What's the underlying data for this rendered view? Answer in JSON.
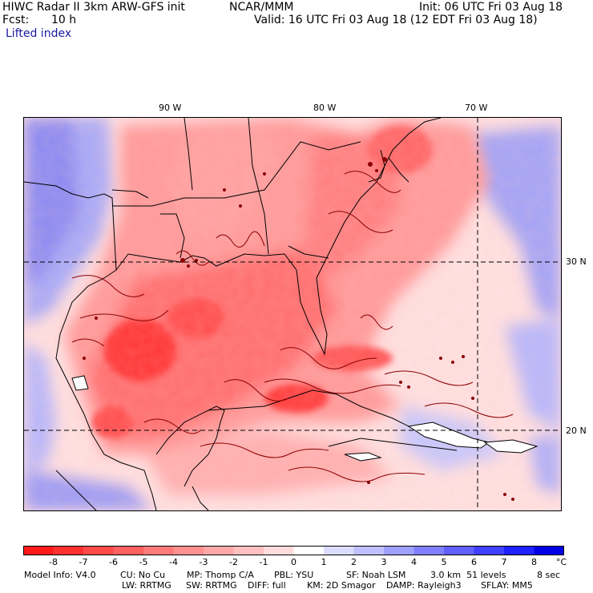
{
  "header": {
    "title": "HIWC Radar II 3km ARW-GFS init",
    "org": "NCAR/MMM",
    "init": "Init: 06 UTC Fri 03 Aug 18",
    "fcst_label": "Fcst:",
    "fcst_value": "10 h",
    "valid": "Valid: 16 UTC Fri 03 Aug 18 (12 EDT Fri 03 Aug 18)",
    "field": "Lifted index"
  },
  "map": {
    "lon_labels": [
      "90 W",
      "80 W",
      "70 W"
    ],
    "lat_labels": [
      "30 N",
      "20 N"
    ],
    "region": "Gulf of Mexico, Caribbean and southeastern United States",
    "field_name": "Lifted index",
    "units": "°C"
  },
  "colorbar": {
    "labels": [
      "-8",
      "-7",
      "-6",
      "-5",
      "-4",
      "-3",
      "-2",
      "-1",
      "0",
      "1",
      "2",
      "3",
      "4",
      "5",
      "6",
      "7",
      "8"
    ],
    "unit": "°C",
    "colors": [
      "#ff1a1a",
      "#ff3030",
      "#ff4a4a",
      "#ff6060",
      "#ff7a7a",
      "#ff9090",
      "#ffa8a8",
      "#ffc0c0",
      "#ffdcdc",
      "#ffffff",
      "#dcdcff",
      "#c0c0ff",
      "#a0a0ff",
      "#8080ff",
      "#6060ff",
      "#4040ff",
      "#2020ff",
      "#0000e6"
    ]
  },
  "footer": {
    "line1": {
      "model": "Model Info: V4.0",
      "cu": "CU: No Cu",
      "mp": "MP: Thomp C/A",
      "pbl": "PBL: YSU",
      "sf": "SF: Noah LSM",
      "res": "3.0 km  51 levels",
      "dt": "8 sec"
    },
    "line2": {
      "lw": "LW: RRTMG",
      "sw": "SW: RRTMG",
      "diff": "DIFF: full",
      "km": "KM: 2D Smagor",
      "damp": "DAMP: Rayleigh3",
      "sflay": "SFLAY: MM5"
    }
  }
}
